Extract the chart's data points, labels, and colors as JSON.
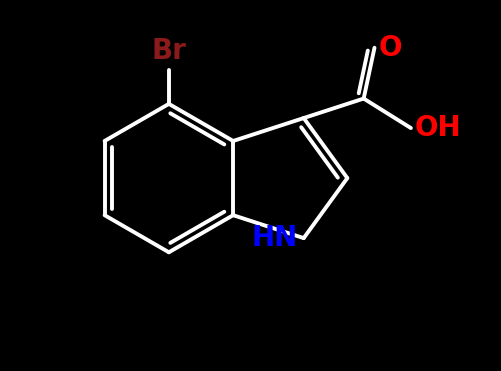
{
  "background_color": "#000000",
  "bond_color": "#ffffff",
  "bond_width": 2.8,
  "Br_color": "#8b1a1a",
  "O_color": "#ff0000",
  "N_color": "#0000ff",
  "figsize": [
    5.01,
    3.71
  ],
  "dpi": 100,
  "xlim": [
    -3.0,
    3.5
  ],
  "ylim": [
    -2.5,
    2.5
  ],
  "font_size": 20
}
